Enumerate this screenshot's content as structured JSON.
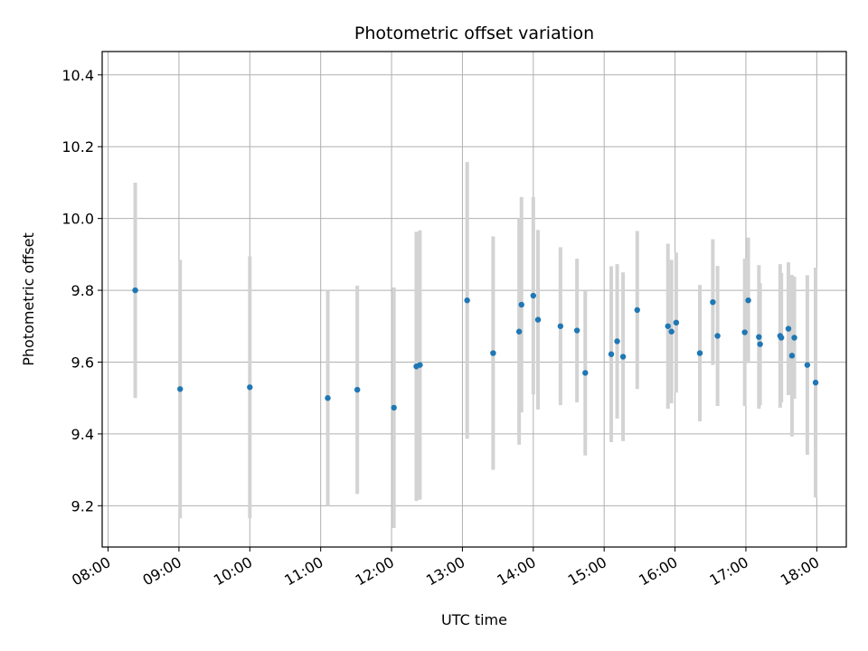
{
  "chart_data": {
    "type": "scatter",
    "title": "Photometric offset variation",
    "xlabel": "UTC time",
    "ylabel": "Photometric offset",
    "x_ticks": [
      "08:00",
      "09:00",
      "10:00",
      "11:00",
      "12:00",
      "13:00",
      "14:00",
      "15:00",
      "16:00",
      "17:00",
      "18:00"
    ],
    "y_ticks": [
      "9.2",
      "9.4",
      "9.6",
      "9.8",
      "10.0",
      "10.2",
      "10.4"
    ],
    "xlim": [
      "07:55",
      "18:25"
    ],
    "ylim": [
      9.085,
      10.465
    ],
    "grid": true,
    "marker_color": "#1f77b4",
    "errorbar_color": "#d3d3d3",
    "points": [
      {
        "x": "08:23",
        "y": 9.8,
        "err": 0.3
      },
      {
        "x": "09:01",
        "y": 9.525,
        "err": 0.36
      },
      {
        "x": "10:00",
        "y": 9.53,
        "err": 0.365
      },
      {
        "x": "11:06",
        "y": 9.5,
        "err": 0.3
      },
      {
        "x": "11:31",
        "y": 9.523,
        "err": 0.29
      },
      {
        "x": "12:02",
        "y": 9.473,
        "err": 0.335
      },
      {
        "x": "12:21",
        "y": 9.588,
        "err": 0.375
      },
      {
        "x": "12:24",
        "y": 9.592,
        "err": 0.375
      },
      {
        "x": "13:04",
        "y": 9.772,
        "err": 0.385
      },
      {
        "x": "13:26",
        "y": 9.625,
        "err": 0.325
      },
      {
        "x": "13:48",
        "y": 9.685,
        "err": 0.315
      },
      {
        "x": "13:50",
        "y": 9.76,
        "err": 0.3
      },
      {
        "x": "14:00",
        "y": 9.785,
        "err": 0.275
      },
      {
        "x": "14:04",
        "y": 9.718,
        "err": 0.25
      },
      {
        "x": "14:23",
        "y": 9.7,
        "err": 0.22
      },
      {
        "x": "14:37",
        "y": 9.688,
        "err": 0.2
      },
      {
        "x": "14:44",
        "y": 9.57,
        "err": 0.23
      },
      {
        "x": "15:06",
        "y": 9.622,
        "err": 0.245
      },
      {
        "x": "15:11",
        "y": 9.658,
        "err": 0.215
      },
      {
        "x": "15:16",
        "y": 9.615,
        "err": 0.235
      },
      {
        "x": "15:28",
        "y": 9.745,
        "err": 0.22
      },
      {
        "x": "15:54",
        "y": 9.7,
        "err": 0.23
      },
      {
        "x": "15:57",
        "y": 9.685,
        "err": 0.2
      },
      {
        "x": "16:01",
        "y": 9.71,
        "err": 0.195
      },
      {
        "x": "16:21",
        "y": 9.625,
        "err": 0.19
      },
      {
        "x": "16:32",
        "y": 9.767,
        "err": 0.175
      },
      {
        "x": "16:36",
        "y": 9.673,
        "err": 0.195
      },
      {
        "x": "16:59",
        "y": 9.683,
        "err": 0.205
      },
      {
        "x": "17:02",
        "y": 9.772,
        "err": 0.175
      },
      {
        "x": "17:11",
        "y": 9.67,
        "err": 0.2
      },
      {
        "x": "17:12",
        "y": 9.65,
        "err": 0.17
      },
      {
        "x": "17:29",
        "y": 9.673,
        "err": 0.2
      },
      {
        "x": "17:30",
        "y": 9.668,
        "err": 0.18
      },
      {
        "x": "17:36",
        "y": 9.693,
        "err": 0.185
      },
      {
        "x": "17:39",
        "y": 9.618,
        "err": 0.225
      },
      {
        "x": "17:41",
        "y": 9.668,
        "err": 0.17
      },
      {
        "x": "17:52",
        "y": 9.592,
        "err": 0.25
      },
      {
        "x": "17:59",
        "y": 9.543,
        "err": 0.32
      }
    ]
  }
}
